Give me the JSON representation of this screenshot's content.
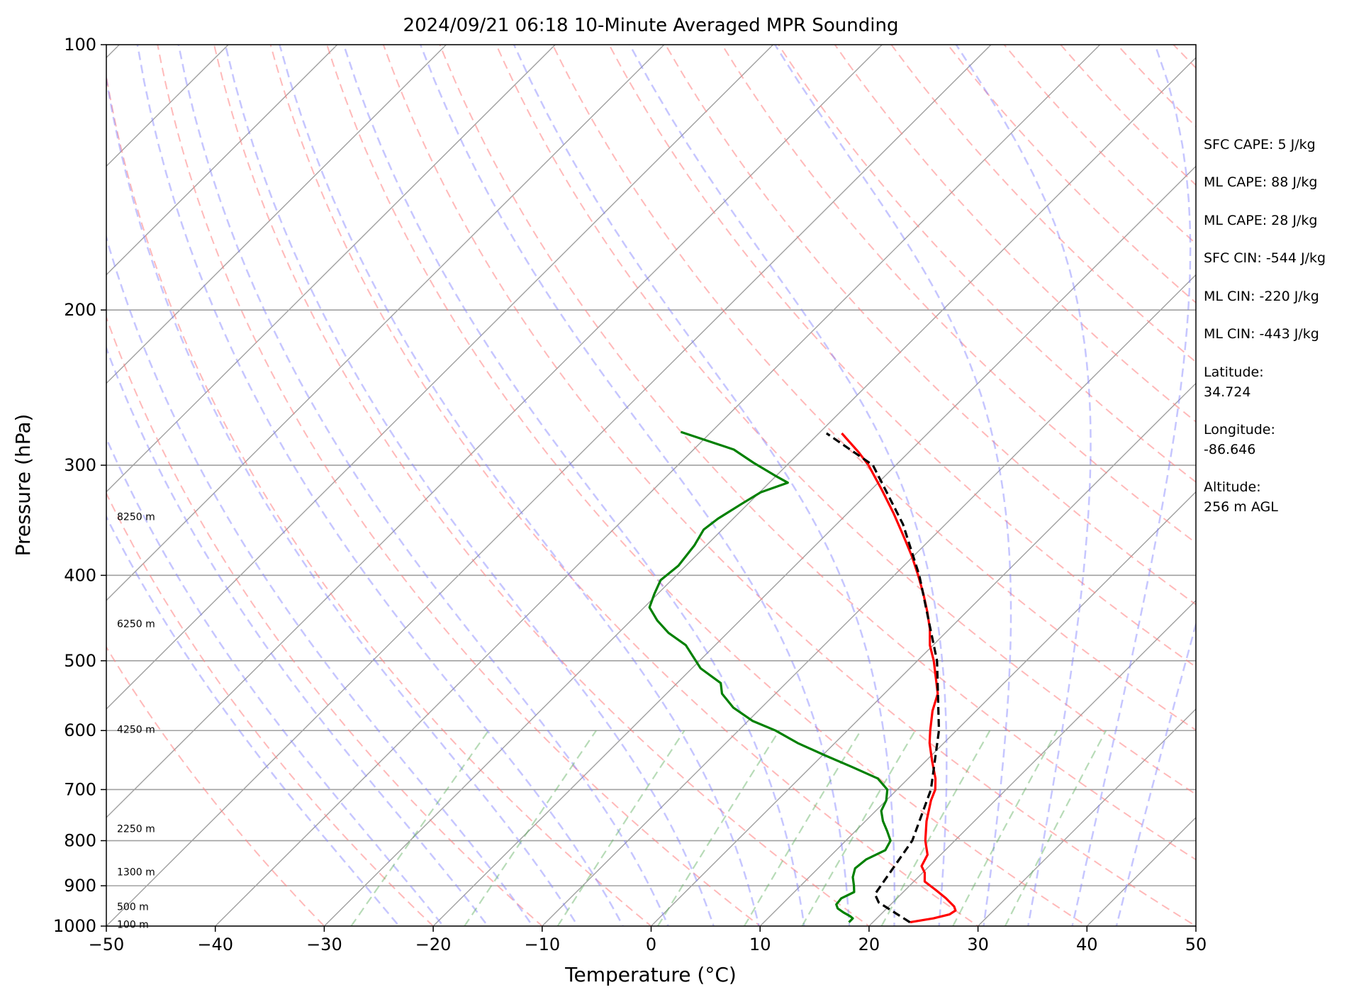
{
  "chart_data": {
    "type": "line",
    "subtype": "skew-t log-p",
    "title": "2024/09/21 06:18 10-Minute Averaged MPR Sounding",
    "xlabel": "Temperature (°C)",
    "ylabel": "Pressure (hPa)",
    "xlim": [
      -50,
      50
    ],
    "ylim": [
      1000,
      100
    ],
    "y_scale": "log",
    "xticks": [
      -50,
      -40,
      -30,
      -20,
      -10,
      0,
      10,
      20,
      30,
      40,
      50
    ],
    "yticks": [
      1000,
      900,
      800,
      700,
      600,
      500,
      400,
      300,
      200,
      100
    ],
    "grid": true,
    "series": [
      {
        "color": "#ff0000",
        "style": "solid",
        "points": [
          [
            990,
            23.4
          ],
          [
            980,
            25.2
          ],
          [
            970,
            26.3
          ],
          [
            960,
            26.5
          ],
          [
            950,
            26.0
          ],
          [
            930,
            24.5
          ],
          [
            910,
            22.8
          ],
          [
            890,
            21.0
          ],
          [
            870,
            20.2
          ],
          [
            855,
            19.3
          ],
          [
            830,
            18.8
          ],
          [
            800,
            17.3
          ],
          [
            760,
            15.6
          ],
          [
            720,
            14.1
          ],
          [
            700,
            13.5
          ],
          [
            680,
            12.5
          ],
          [
            650,
            10.6
          ],
          [
            620,
            8.7
          ],
          [
            600,
            7.6
          ],
          [
            570,
            6.0
          ],
          [
            545,
            4.9
          ],
          [
            530,
            3.8
          ],
          [
            500,
            1.5
          ],
          [
            480,
            -0.3
          ],
          [
            460,
            -1.8
          ],
          [
            440,
            -3.6
          ],
          [
            420,
            -5.6
          ],
          [
            400,
            -7.8
          ],
          [
            380,
            -10.2
          ],
          [
            360,
            -12.9
          ],
          [
            340,
            -15.8
          ],
          [
            320,
            -19.0
          ],
          [
            300,
            -22.5
          ],
          [
            290,
            -24.6
          ],
          [
            276,
            -27.9
          ]
        ]
      },
      {
        "color": "#008000",
        "style": "solid",
        "points": [
          [
            990,
            17.8
          ],
          [
            980,
            17.8
          ],
          [
            975,
            17.4
          ],
          [
            965,
            16.4
          ],
          [
            955,
            15.5
          ],
          [
            945,
            15.0
          ],
          [
            930,
            14.9
          ],
          [
            915,
            15.5
          ],
          [
            900,
            14.9
          ],
          [
            880,
            14.0
          ],
          [
            860,
            13.4
          ],
          [
            840,
            13.6
          ],
          [
            820,
            14.5
          ],
          [
            800,
            14.1
          ],
          [
            780,
            12.9
          ],
          [
            760,
            11.6
          ],
          [
            740,
            10.5
          ],
          [
            720,
            10.0
          ],
          [
            700,
            9.1
          ],
          [
            680,
            7.2
          ],
          [
            660,
            3.8
          ],
          [
            640,
            0.2
          ],
          [
            620,
            -3.4
          ],
          [
            600,
            -6.6
          ],
          [
            585,
            -9.6
          ],
          [
            565,
            -12.6
          ],
          [
            545,
            -14.9
          ],
          [
            530,
            -16.0
          ],
          [
            510,
            -19.2
          ],
          [
            480,
            -22.7
          ],
          [
            465,
            -25.4
          ],
          [
            450,
            -27.6
          ],
          [
            435,
            -29.5
          ],
          [
            420,
            -30.3
          ],
          [
            405,
            -31.0
          ],
          [
            390,
            -30.7
          ],
          [
            370,
            -31.1
          ],
          [
            355,
            -31.7
          ],
          [
            345,
            -31.4
          ],
          [
            332,
            -30.6
          ],
          [
            322,
            -29.9
          ],
          [
            314,
            -28.3
          ],
          [
            308,
            -30.2
          ],
          [
            298,
            -33.3
          ],
          [
            288,
            -36.3
          ],
          [
            275,
            -42.8
          ]
        ]
      },
      {
        "color": "#000000",
        "style": "dashed",
        "points": [
          [
            990,
            23.4
          ],
          [
            940,
            18.7
          ],
          [
            920,
            17.6
          ],
          [
            800,
            16.1
          ],
          [
            700,
            13.1
          ],
          [
            600,
            8.4
          ],
          [
            500,
            1.8
          ],
          [
            400,
            -7.7
          ],
          [
            350,
            -13.9
          ],
          [
            300,
            -22.1
          ],
          [
            276,
            -29.3
          ]
        ]
      }
    ],
    "height_labels": [
      {
        "text": "100 m",
        "p": 995
      },
      {
        "text": "500 m",
        "p": 950
      },
      {
        "text": "1300 m",
        "p": 868
      },
      {
        "text": "2250 m",
        "p": 775
      },
      {
        "text": "4250 m",
        "p": 598
      },
      {
        "text": "6250 m",
        "p": 454
      },
      {
        "text": "8250 m",
        "p": 343
      }
    ]
  },
  "stats": [
    "SFC CAPE: 5 J/kg",
    "ML CAPE: 88 J/kg",
    "ML CAPE: 28 J/kg",
    "SFC CIN: -544 J/kg",
    "ML CIN: -220 J/kg",
    "ML CIN: -443 J/kg",
    "Latitude:",
    "34.724",
    "Longitude:",
    "-86.646",
    "Altitude:",
    "256 m AGL"
  ],
  "colors": {
    "isotherm": "#a0a0a0",
    "dry_adiabat": "#ff8080",
    "moist_adiabat": "#8080ff",
    "mixing_ratio": "#60b060"
  }
}
